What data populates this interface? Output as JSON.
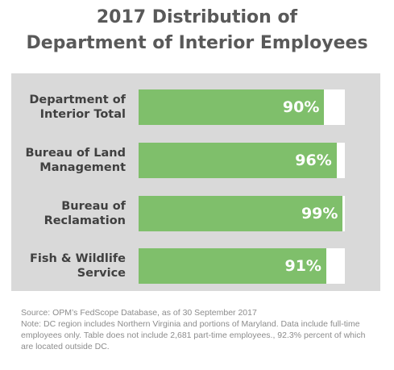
{
  "chart_data": {
    "type": "bar",
    "title_lines": [
      "2017 Distribution of",
      "Department of Interior Employees"
    ],
    "categories": [
      [
        "Department of",
        "Interior Total"
      ],
      [
        "Bureau of Land",
        "Management"
      ],
      [
        "Bureau of",
        "Reclamation"
      ],
      [
        "Fish & Wildlife",
        "Service"
      ]
    ],
    "values": [
      90,
      96,
      99,
      91
    ],
    "value_labels": [
      "90%",
      "96%",
      "99%",
      "91%"
    ],
    "xlim": [
      0,
      100
    ],
    "colors": {
      "bar": "#7fbf6b",
      "track": "#ffffff",
      "panel": "#d9d9d9"
    }
  },
  "notes": {
    "source": "Source: OPM’s FedScope Database, as of 30 September 2017",
    "note": "Note: DC region includes Northern Virginia and portions of Maryland. Data include full-time employees only. Table does not include 2,681 part-time employees., 92.3% percent of which are located outside DC."
  }
}
